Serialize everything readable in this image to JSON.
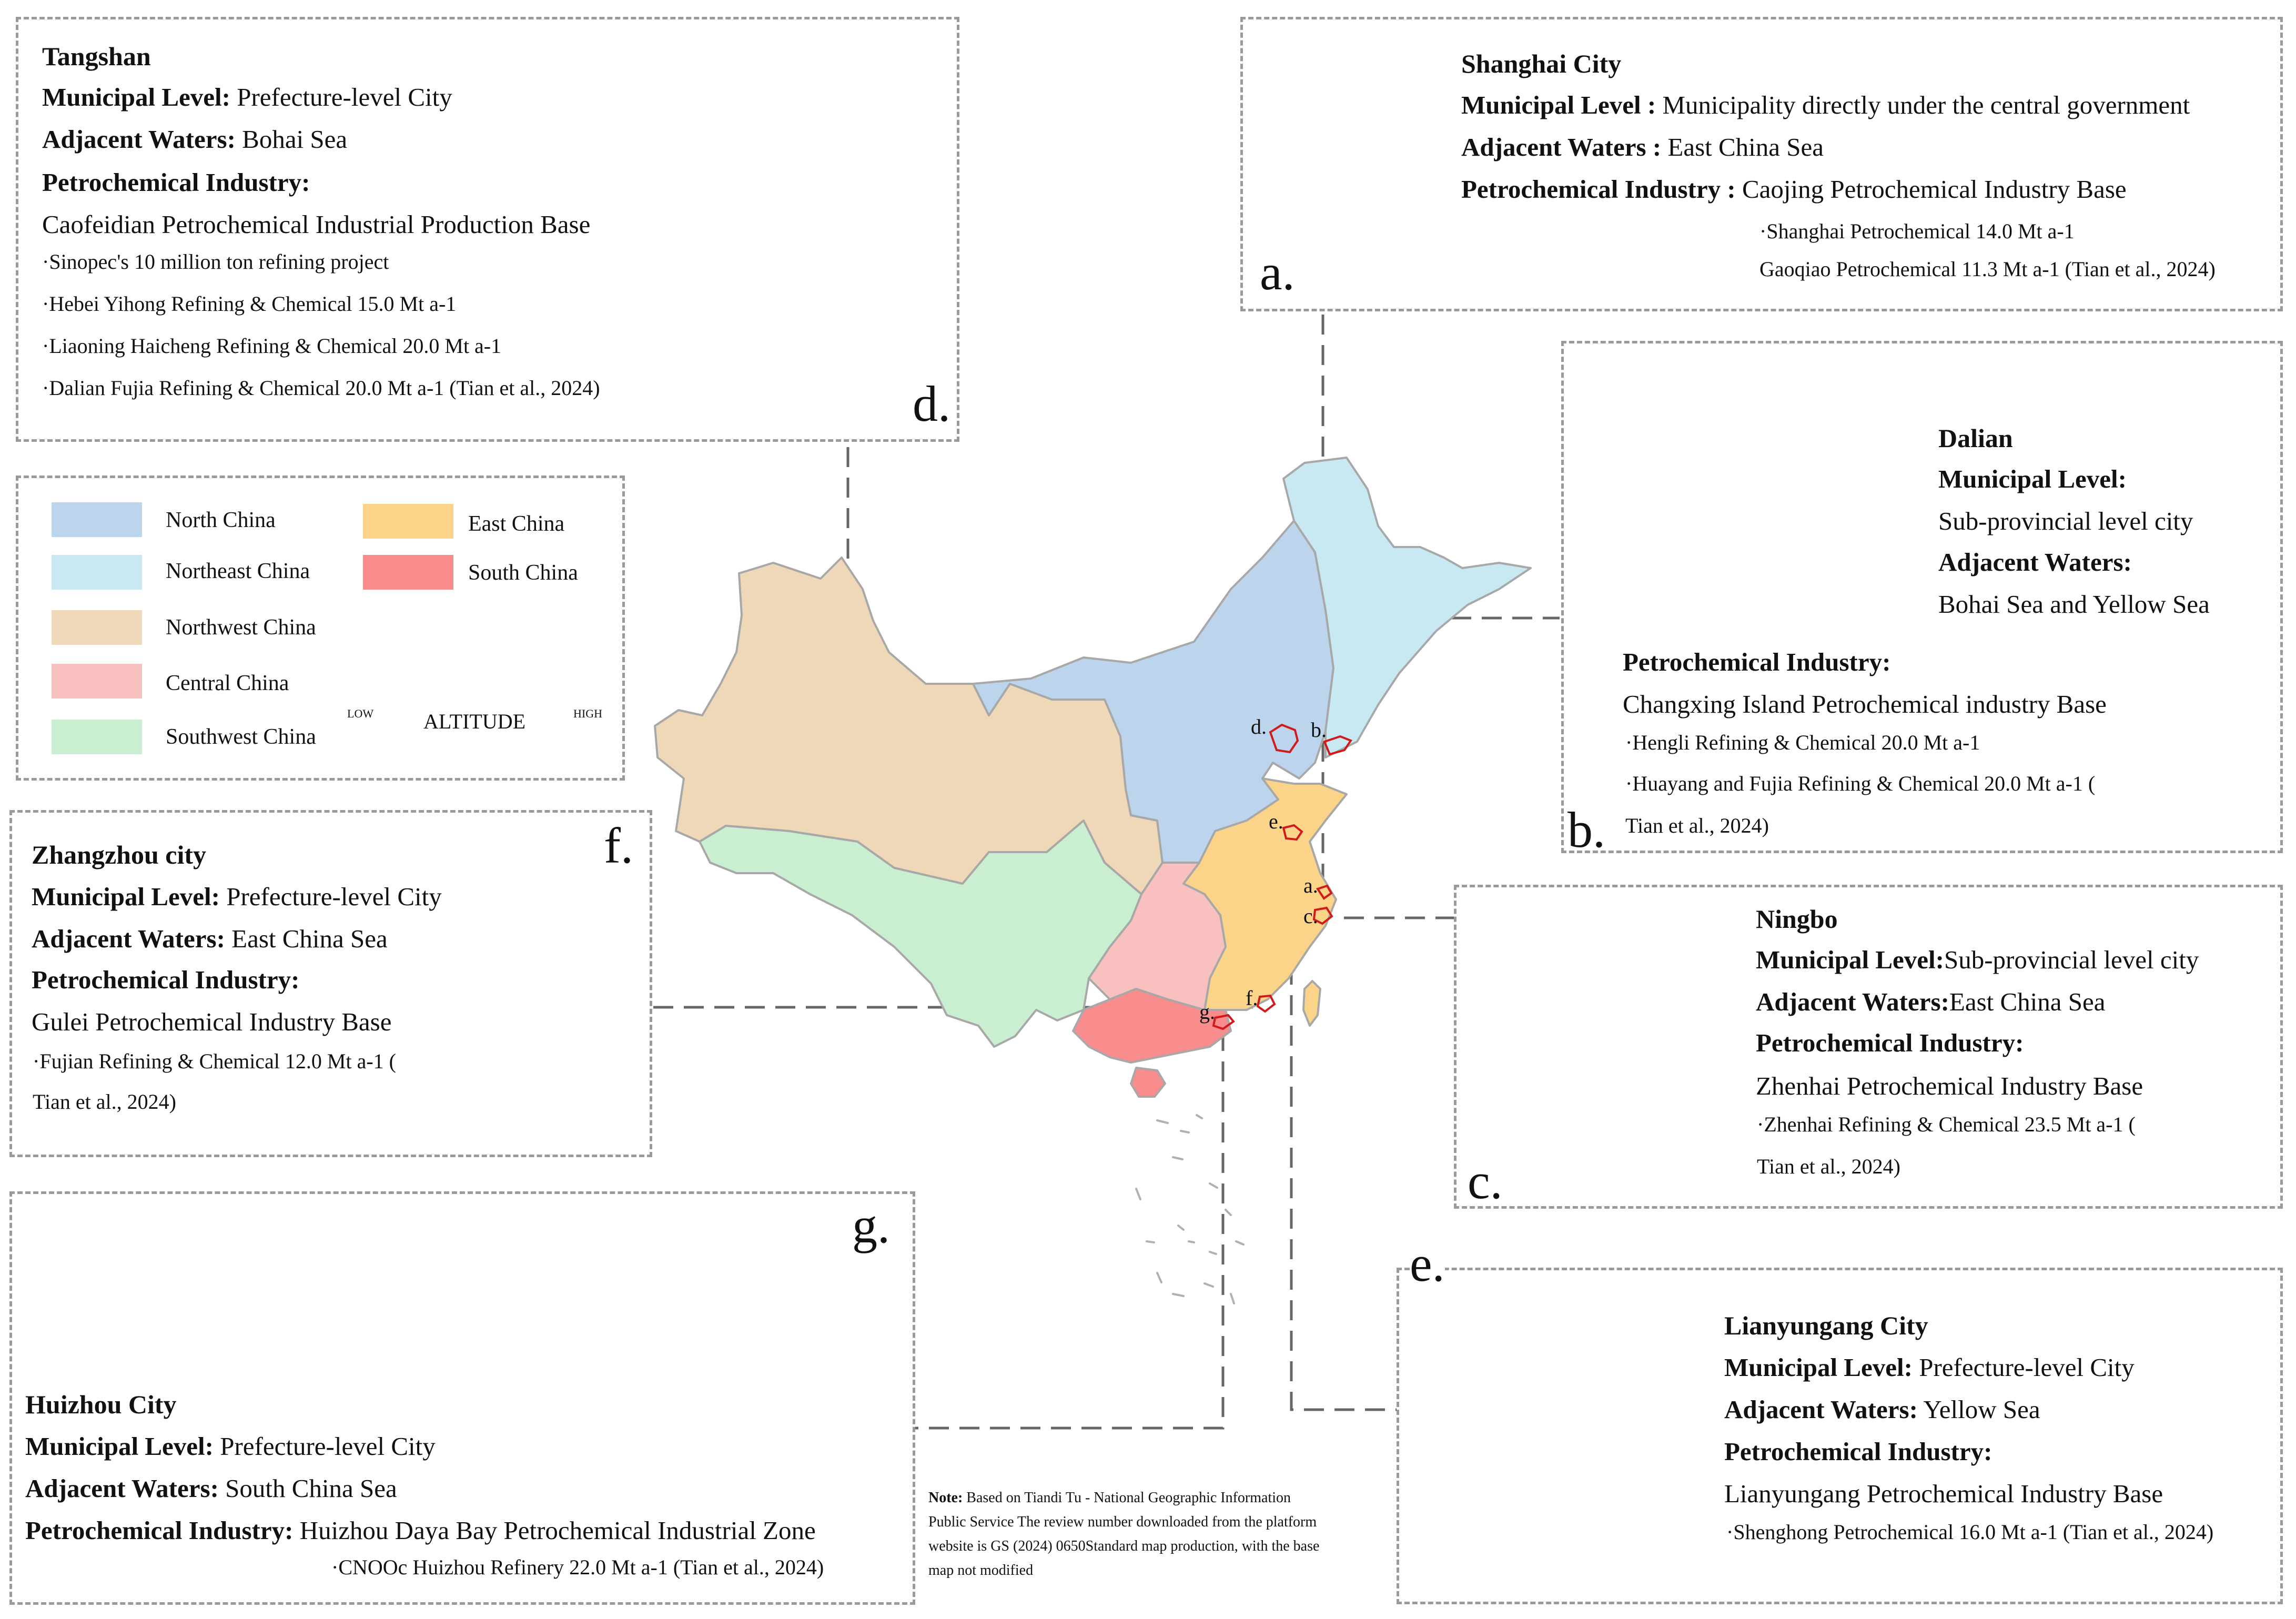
{
  "colors": {
    "north": "#bcd4ec",
    "northeast": "#c8e8f2",
    "northwest": "#efd8b8",
    "east": "#fbd48a",
    "central": "#f9c0c0",
    "south": "#f98c8c",
    "southwest": "#c9efd0",
    "city_fill": "#fbab00",
    "altitude_low": "#fbab00",
    "altitude_high": "#f53b00"
  },
  "panels": {
    "a": {
      "letter": "a.",
      "title": "Shanghai City",
      "level_label": "Municipal Level :",
      "level_value": "Municipality directly under the central government",
      "waters_label": "Adjacent Waters :",
      "waters_value": "East China Sea",
      "industry_label": "Petrochemical Industry :",
      "industry_value": "Caojing Petrochemical Industry Base",
      "items": [
        "·Shanghai Petrochemical 14.0 Mt a-1",
        "Gaoqiao Petrochemical 11.3 Mt a-1 (Tian et al., 2024)"
      ]
    },
    "b": {
      "letter": "b.",
      "title": "Dalian",
      "level_label": "Municipal Level:",
      "level_value": "Sub-provincial level city",
      "waters_label": "Adjacent Waters:",
      "waters_value": "Bohai Sea and Yellow Sea",
      "industry_label": "Petrochemical Industry:",
      "industry_value": "Changxing Island Petrochemical industry Base",
      "items": [
        "·Hengli Refining & Chemical 20.0 Mt a-1",
        "·Huayang and Fujia Refining & Chemical 20.0 Mt a-1 (",
        "Tian et al., 2024)"
      ]
    },
    "c": {
      "letter": "c.",
      "title": "Ningbo",
      "level_label": "Municipal Level:",
      "level_value": "Sub-provincial level city",
      "waters_label": "Adjacent Waters:",
      "waters_value": "East China Sea",
      "industry_label": "Petrochemical Industry:",
      "industry_value": "Zhenhai Petrochemical Industry Base",
      "items": [
        "·Zhenhai Refining & Chemical 23.5 Mt a-1 (",
        "Tian et al., 2024)"
      ]
    },
    "d": {
      "letter": "d.",
      "title": "Tangshan",
      "level_label": "Municipal Level:",
      "level_value": "Prefecture-level City",
      "waters_label": "Adjacent Waters:",
      "waters_value": "Bohai Sea",
      "industry_label": "Petrochemical Industry:",
      "industry_value": "Caofeidian Petrochemical Industrial Production Base",
      "items": [
        "·Sinopec's 10 million ton refining project",
        "·Hebei Yihong Refining & Chemical 15.0 Mt a-1",
        "·Liaoning Haicheng Refining & Chemical 20.0 Mt a-1",
        "·Dalian Fujia Refining & Chemical 20.0 Mt a-1 (Tian et al., 2024)"
      ]
    },
    "e": {
      "letter": "e.",
      "title": "Lianyungang City",
      "level_label": "Municipal Level:",
      "level_value": "Prefecture-level City",
      "waters_label": "Adjacent Waters:",
      "waters_value": "Yellow Sea",
      "industry_label": "Petrochemical Industry:",
      "industry_value": "Lianyungang Petrochemical Industry Base",
      "items": [
        "·Shenghong Petrochemical 16.0 Mt a-1 (Tian et al., 2024)"
      ]
    },
    "f": {
      "letter": "f.",
      "title": "Zhangzhou city",
      "level_label": "Municipal Level:",
      "level_value": "Prefecture-level City",
      "waters_label": "Adjacent Waters:",
      "waters_value": "East China Sea",
      "industry_label": "Petrochemical Industry:",
      "industry_value": "Gulei Petrochemical Industry Base",
      "items": [
        "·Fujian Refining & Chemical 12.0 Mt a-1 (",
        "Tian et al., 2024)"
      ]
    },
    "g": {
      "letter": "g.",
      "title": "Huizhou City",
      "level_label": "Municipal Level:",
      "level_value": "Prefecture-level City",
      "waters_label": "Adjacent Waters:",
      "waters_value": "South China Sea",
      "industry_label": "Petrochemical Industry:",
      "industry_value": "Huizhou Daya Bay Petrochemical Industrial Zone",
      "items": [
        "·CNOOc Huizhou Refinery 22.0 Mt a-1 (Tian et al., 2024)"
      ]
    }
  },
  "legend": {
    "north": "North China",
    "northeast": "Northeast China",
    "northwest": "Northwest China",
    "central": "Central China",
    "southwest": "Southwest China",
    "east": "East China",
    "south": "South China",
    "altitude": "ALTITUDE",
    "low": "LOW",
    "high": "HIGH"
  },
  "map_labels": {
    "a": "a.",
    "b": "b.",
    "c": "c.",
    "d": "d.",
    "e": "e.",
    "f": "f.",
    "g": "g."
  },
  "note": {
    "label": "Note:",
    "lines": [
      "Based on Tiandi Tu - National Geographic Information",
      "Public Service The review number downloaded from the platform",
      "website is GS (2024) 0650Standard map production, with the base",
      "map not modified"
    ]
  }
}
